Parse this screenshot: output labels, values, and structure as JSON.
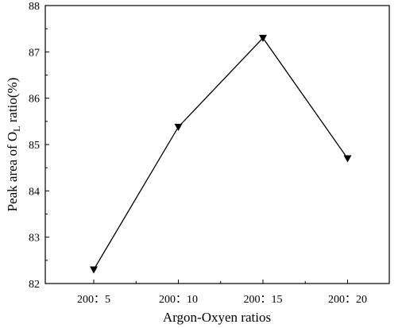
{
  "chart_data": {
    "type": "line",
    "categories": [
      "200：5",
      "200：10",
      "200：15",
      "200：20"
    ],
    "series": [
      {
        "values": [
          82.3,
          85.38,
          87.3,
          84.7
        ],
        "marker": "triangle-down",
        "color": "#000000"
      }
    ],
    "xlabel": "Argon-Oxyen ratios",
    "ylabel": {
      "prefix": "Peak area of O",
      "subscript": "L",
      "suffix": " ratio(%)"
    },
    "ylim": [
      82,
      88
    ],
    "yticks": [
      "82",
      "83",
      "84",
      "85",
      "86",
      "87",
      "88"
    ],
    "grid": false
  }
}
